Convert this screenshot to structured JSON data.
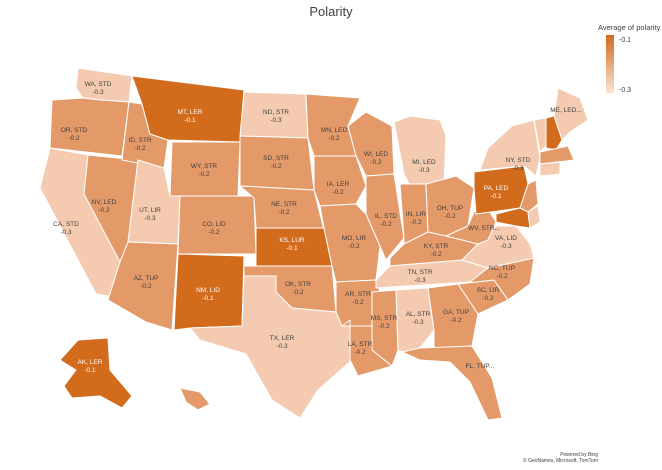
{
  "title": "Polarity",
  "legend": {
    "title": "Average of polarity",
    "max_label": "-0.1",
    "min_label": "-0.3"
  },
  "colors": {
    "high": "#d26b1c",
    "mid": "#e49a68",
    "low": "#f4cbb0",
    "lowest": "#fbe3d0",
    "text_dark": "#404040",
    "text_light": "#ffffff"
  },
  "states": [
    {
      "id": "WA",
      "name": "WA, STD",
      "value": "-0.3",
      "v": -0.3
    },
    {
      "id": "OR",
      "name": "OR, STD",
      "value": "-0.2",
      "v": -0.2
    },
    {
      "id": "CA",
      "name": "CA, STD",
      "value": "-0.3",
      "v": -0.3
    },
    {
      "id": "NV",
      "name": "NV, LED",
      "value": "-0.2",
      "v": -0.2
    },
    {
      "id": "ID",
      "name": "ID, STR",
      "value": "-0.2",
      "v": -0.2
    },
    {
      "id": "MT",
      "name": "MT, LER",
      "value": "-0.1",
      "v": -0.1
    },
    {
      "id": "WY",
      "name": "WY, STR",
      "value": "-0.2",
      "v": -0.2
    },
    {
      "id": "UT",
      "name": "UT, LIR",
      "value": "-0.3",
      "v": -0.3
    },
    {
      "id": "AZ",
      "name": "AZ, TUP",
      "value": "-0.2",
      "v": -0.2
    },
    {
      "id": "CO",
      "name": "CO, LID",
      "value": "-0.2",
      "v": -0.2
    },
    {
      "id": "NM",
      "name": "NM, LID",
      "value": "-0.1",
      "v": -0.1
    },
    {
      "id": "ND",
      "name": "ND, STR",
      "value": "-0.3",
      "v": -0.3
    },
    {
      "id": "SD",
      "name": "SD, STR",
      "value": "-0.2",
      "v": -0.2
    },
    {
      "id": "NE",
      "name": "NE, STR",
      "value": "-0.2",
      "v": -0.2
    },
    {
      "id": "KS",
      "name": "KS, LUR",
      "value": "-0.1",
      "v": -0.1
    },
    {
      "id": "OK",
      "name": "OK, STR",
      "value": "-0.2",
      "v": -0.2
    },
    {
      "id": "TX",
      "name": "TX, LER",
      "value": "-0.3",
      "v": -0.3
    },
    {
      "id": "MN",
      "name": "MN, LED",
      "value": "-0.2",
      "v": -0.2
    },
    {
      "id": "IA",
      "name": "IA, LER",
      "value": "-0.2",
      "v": -0.2
    },
    {
      "id": "MO",
      "name": "MO, LIR",
      "value": "-0.2",
      "v": -0.2
    },
    {
      "id": "AR",
      "name": "AR, STR",
      "value": "-0.2",
      "v": -0.2
    },
    {
      "id": "LA",
      "name": "LA, STR",
      "value": "-0.2",
      "v": -0.2
    },
    {
      "id": "WI",
      "name": "WI, LED",
      "value": "-0.2",
      "v": -0.2
    },
    {
      "id": "IL",
      "name": "IL, STD",
      "value": "-0.2",
      "v": -0.2
    },
    {
      "id": "MI",
      "name": "MI, LED",
      "value": "-0.3",
      "v": -0.3
    },
    {
      "id": "IN",
      "name": "IN, LIR",
      "value": "-0.2",
      "v": -0.2
    },
    {
      "id": "OH",
      "name": "OH, TUP",
      "value": "-0.2",
      "v": -0.2
    },
    {
      "id": "KY",
      "name": "KY, STR",
      "value": "-0.2",
      "v": -0.2
    },
    {
      "id": "TN",
      "name": "TN, STR",
      "value": "-0.3",
      "v": -0.3
    },
    {
      "id": "MS",
      "name": "MS, STR",
      "value": "-0.2",
      "v": -0.2
    },
    {
      "id": "AL",
      "name": "AL, STR",
      "value": "-0.3",
      "v": -0.3
    },
    {
      "id": "GA",
      "name": "GA, TUP",
      "value": "-0.2",
      "v": -0.2
    },
    {
      "id": "FL",
      "name": "FL, TUP...",
      "value": "",
      "v": -0.2
    },
    {
      "id": "SC",
      "name": "SC, LIR",
      "value": "-0.2",
      "v": -0.2
    },
    {
      "id": "NC",
      "name": "NC, TUP",
      "value": "-0.2",
      "v": -0.2
    },
    {
      "id": "VA",
      "name": "VA, LID",
      "value": "-0.3",
      "v": -0.3
    },
    {
      "id": "WV",
      "name": "WV, STR...",
      "value": "",
      "v": -0.2
    },
    {
      "id": "PA",
      "name": "PA, LED",
      "value": "-0.1",
      "v": -0.1
    },
    {
      "id": "NY",
      "name": "NY, STD",
      "value": "-0.3",
      "v": -0.3
    },
    {
      "id": "ME",
      "name": "ME, LED...",
      "value": "",
      "v": -0.3
    },
    {
      "id": "AK",
      "name": "AK, LER",
      "value": "-0.1",
      "v": -0.1
    },
    {
      "id": "VT",
      "name": "",
      "value": "",
      "v": -0.3
    },
    {
      "id": "NH",
      "name": "",
      "value": "",
      "v": -0.1
    },
    {
      "id": "MA",
      "name": "",
      "value": "",
      "v": -0.2
    },
    {
      "id": "CT",
      "name": "",
      "value": "",
      "v": -0.3
    },
    {
      "id": "NJ",
      "name": "",
      "value": "",
      "v": -0.2
    },
    {
      "id": "MD",
      "name": "",
      "value": "",
      "v": -0.1
    },
    {
      "id": "DE",
      "name": "",
      "value": "",
      "v": -0.3
    },
    {
      "id": "HI",
      "name": "",
      "value": "",
      "v": -0.2
    }
  ],
  "footer": {
    "line1": "Powered by Bing",
    "line2": "© GeoNames, Microsoft, TomTom"
  }
}
